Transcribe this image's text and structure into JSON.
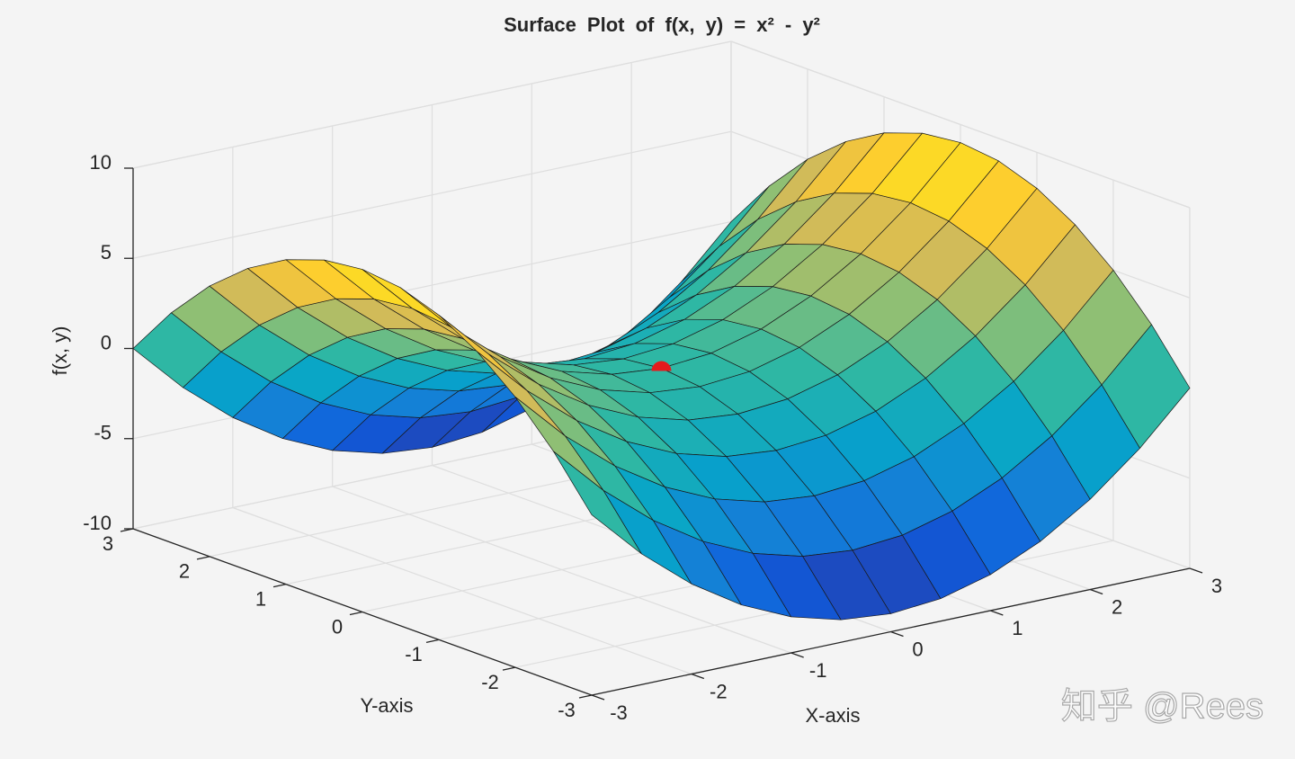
{
  "chart_data": {
    "type": "surface",
    "title": "Surface Plot of f(x, y) = x² - y²",
    "xlabel": "X-axis",
    "ylabel": "Y-axis",
    "zlabel": "f(x, y)",
    "watermark": "知乎 @Rees",
    "x": [
      -3,
      -2.5,
      -2,
      -1.5,
      -1,
      -0.5,
      0,
      0.5,
      1,
      1.5,
      2,
      2.5,
      3
    ],
    "y": [
      -3,
      -2.5,
      -2,
      -1.5,
      -1,
      -0.5,
      0,
      0.5,
      1,
      1.5,
      2,
      2.5,
      3
    ],
    "z": [
      [
        0,
        -2.75,
        -5,
        -6.75,
        -8,
        -8.75,
        -9,
        -8.75,
        -8,
        -6.75,
        -5,
        -2.75,
        0
      ],
      [
        2.75,
        0,
        -2.25,
        -4,
        -5.25,
        -6,
        -6.25,
        -6,
        -5.25,
        -4,
        -2.25,
        0,
        2.75
      ],
      [
        5,
        2.25,
        0,
        -1.75,
        -3,
        -3.75,
        -4,
        -3.75,
        -3,
        -1.75,
        0,
        2.25,
        5
      ],
      [
        6.75,
        4,
        1.75,
        0,
        -1.25,
        -2,
        -2.25,
        -2,
        -1.25,
        0,
        1.75,
        4,
        6.75
      ],
      [
        8,
        5.25,
        3,
        1.25,
        0,
        -0.75,
        -1,
        -0.75,
        0,
        1.25,
        3,
        5.25,
        8
      ],
      [
        8.75,
        6,
        3.75,
        2,
        0.75,
        0,
        -0.25,
        0,
        0.75,
        2,
        3.75,
        6,
        8.75
      ],
      [
        9,
        6.25,
        4,
        2.25,
        1,
        0.25,
        0,
        0.25,
        1,
        2.25,
        4,
        6.25,
        9
      ],
      [
        8.75,
        6,
        3.75,
        2,
        0.75,
        0,
        -0.25,
        0,
        0.75,
        2,
        3.75,
        6,
        8.75
      ],
      [
        8,
        5.25,
        3,
        1.25,
        0,
        -0.75,
        -1,
        -0.75,
        0,
        1.25,
        3,
        5.25,
        8
      ],
      [
        6.75,
        4,
        1.75,
        0,
        -1.25,
        -2,
        -2.25,
        -2,
        -1.25,
        0,
        1.75,
        4,
        6.75
      ],
      [
        5,
        2.25,
        0,
        -1.75,
        -3,
        -3.75,
        -4,
        -3.75,
        -3,
        -1.75,
        0,
        2.25,
        5
      ],
      [
        2.75,
        0,
        -2.25,
        -4,
        -5.25,
        -6,
        -6.25,
        -6,
        -5.25,
        -4,
        -2.25,
        0,
        2.75
      ],
      [
        0,
        -2.75,
        -5,
        -6.75,
        -8,
        -8.75,
        -9,
        -8.75,
        -8,
        -6.75,
        -5,
        -2.75,
        0
      ]
    ],
    "colormap": [
      "#352a87",
      "#0f5cdd",
      "#1481d6",
      "#06a4ca",
      "#2eb7a4",
      "#87bf77",
      "#d1bb59",
      "#fec832",
      "#f9fb0e"
    ],
    "edgecolor": "#1a1a1a",
    "marker": {
      "x": 0,
      "y": 0,
      "z": 0,
      "color": "#e41a1c"
    },
    "xlim": [
      -3,
      3
    ],
    "ylim": [
      -3,
      3
    ],
    "zlim": [
      -10,
      10
    ],
    "xticks": [
      -3,
      -2,
      -1,
      0,
      1,
      2,
      3
    ],
    "yticks": [
      -3,
      -2,
      -1,
      0,
      1,
      2,
      3
    ],
    "zticks": [
      -10,
      -5,
      0,
      5,
      10
    ],
    "grid": true
  }
}
